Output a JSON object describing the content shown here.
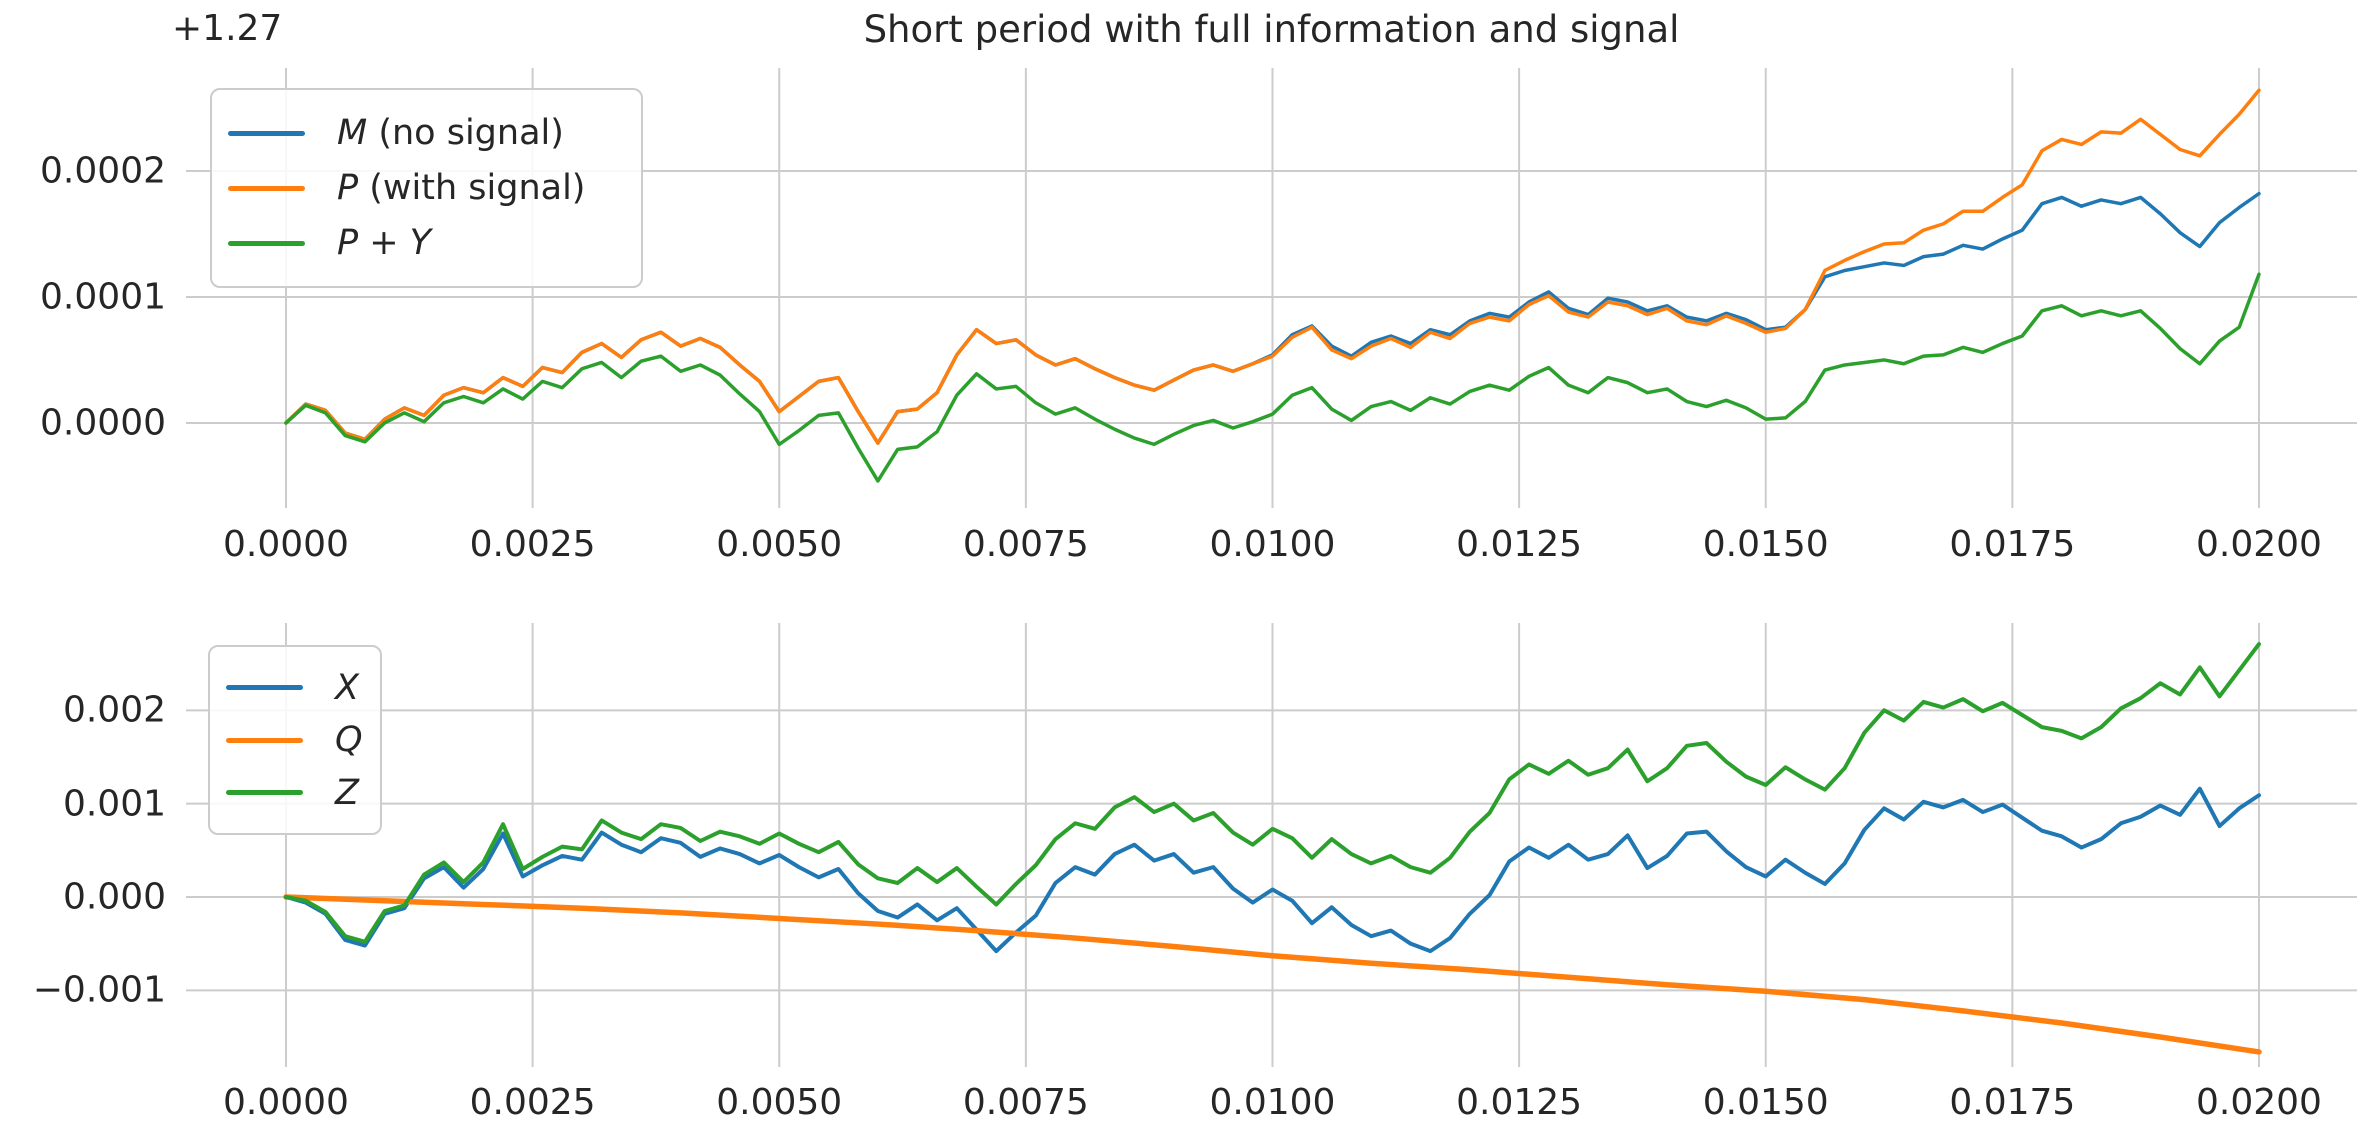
{
  "figure": {
    "title": "Short period with full information and signal",
    "background_color": "#ffffff",
    "text_color": "#262626",
    "grid_color": "#cccccc"
  },
  "chart_data": [
    {
      "id": "top",
      "type": "line",
      "title": "Short period with full information and signal",
      "offset_text": "+1.27",
      "xlabel": "",
      "ylabel": "",
      "grid": true,
      "legend_position": "upper left",
      "xlim": [
        -0.0010136,
        0.0209936
      ],
      "ylim": [
        -6.75e-05,
        0.0002817
      ],
      "x_tick_values": [
        0.0,
        0.0025,
        0.005,
        0.0075,
        0.01,
        0.0125,
        0.015,
        0.0175,
        0.02
      ],
      "x_tick_labels": [
        "0.0000",
        "0.0025",
        "0.0050",
        "0.0075",
        "0.0100",
        "0.0125",
        "0.0150",
        "0.0175",
        "0.0200"
      ],
      "y_tick_values": [
        0.0,
        0.0001,
        0.0002
      ],
      "y_tick_labels": [
        "0.0000",
        "0.0001",
        "0.0002"
      ],
      "legend": [
        {
          "math": "M",
          "text": " (no signal)",
          "color": "#1f77b4"
        },
        {
          "math": "P",
          "text": " (with signal)",
          "color": "#ff7f0e"
        },
        {
          "math": "P + Y",
          "text": "",
          "color": "#2ca02c"
        }
      ],
      "series": [
        {
          "name": "M (no signal)",
          "color": "#1f77b4",
          "width": 3.5,
          "x_start": 0,
          "x_step": 0.0002,
          "value_scale": 1e-05,
          "values": [
            0,
            1.5,
            1.0,
            -0.8,
            -1.3,
            0.3,
            1.2,
            0.6,
            2.2,
            2.8,
            2.4,
            3.6,
            2.9,
            4.4,
            4.0,
            5.6,
            6.3,
            5.2,
            6.6,
            7.2,
            6.1,
            6.7,
            6.0,
            4.6,
            3.3,
            0.9,
            2.1,
            3.3,
            3.6,
            0.9,
            -1.6,
            0.9,
            1.1,
            2.4,
            5.4,
            7.4,
            6.3,
            6.6,
            5.4,
            4.6,
            5.1,
            4.3,
            3.6,
            3.0,
            2.6,
            3.4,
            4.2,
            4.6,
            4.1,
            4.7,
            5.4,
            7.0,
            7.7,
            6.1,
            5.3,
            6.4,
            6.9,
            6.3,
            7.4,
            7.0,
            8.1,
            8.7,
            8.4,
            9.6,
            10.4,
            9.1,
            8.6,
            9.9,
            9.6,
            8.9,
            9.3,
            8.4,
            8.1,
            8.7,
            8.2,
            7.4,
            7.6,
            9.0,
            11.6,
            12.1,
            12.4,
            12.7,
            12.5,
            13.2,
            13.4,
            14.1,
            13.8,
            14.6,
            15.3,
            17.4,
            17.9,
            17.2,
            17.7,
            17.4,
            17.9,
            16.6,
            15.1,
            14.0,
            15.9,
            17.1,
            18.2
          ]
        },
        {
          "name": "P (with signal)",
          "color": "#ff7f0e",
          "width": 3.5,
          "x_start": 0,
          "x_step": 0.0002,
          "value_scale": 1e-05,
          "values": [
            0,
            1.5,
            1.0,
            -0.8,
            -1.3,
            0.3,
            1.2,
            0.6,
            2.2,
            2.8,
            2.4,
            3.6,
            2.9,
            4.4,
            4.0,
            5.6,
            6.3,
            5.2,
            6.6,
            7.2,
            6.1,
            6.7,
            6.0,
            4.6,
            3.3,
            0.9,
            2.1,
            3.3,
            3.6,
            0.9,
            -1.6,
            0.9,
            1.1,
            2.4,
            5.4,
            7.4,
            6.3,
            6.6,
            5.4,
            4.6,
            5.1,
            4.3,
            3.6,
            3.0,
            2.6,
            3.4,
            4.2,
            4.6,
            4.1,
            4.7,
            5.3,
            6.8,
            7.6,
            5.8,
            5.1,
            6.1,
            6.7,
            6.0,
            7.2,
            6.7,
            7.9,
            8.4,
            8.1,
            9.4,
            10.1,
            8.8,
            8.4,
            9.6,
            9.3,
            8.6,
            9.1,
            8.1,
            7.8,
            8.5,
            7.9,
            7.2,
            7.5,
            9.0,
            12.1,
            12.9,
            13.6,
            14.2,
            14.3,
            15.3,
            15.8,
            16.8,
            16.8,
            17.9,
            18.9,
            21.6,
            22.5,
            22.1,
            23.1,
            23.0,
            24.1,
            22.9,
            21.7,
            21.2,
            22.9,
            24.5,
            26.4
          ]
        },
        {
          "name": "P + Y",
          "color": "#2ca02c",
          "width": 3.5,
          "x_start": 0,
          "x_step": 0.0002,
          "value_scale": 1e-05,
          "values": [
            0,
            1.4,
            0.8,
            -1.0,
            -1.5,
            0.0,
            0.8,
            0.1,
            1.6,
            2.1,
            1.6,
            2.7,
            1.9,
            3.3,
            2.8,
            4.3,
            4.8,
            3.6,
            4.9,
            5.3,
            4.1,
            4.6,
            3.8,
            2.3,
            0.9,
            -1.7,
            -0.6,
            0.6,
            0.8,
            -2.0,
            -4.6,
            -2.1,
            -1.9,
            -0.7,
            2.2,
            3.9,
            2.7,
            2.9,
            1.6,
            0.7,
            1.2,
            0.3,
            -0.5,
            -1.2,
            -1.7,
            -0.9,
            -0.2,
            0.2,
            -0.4,
            0.1,
            0.7,
            2.2,
            2.8,
            1.1,
            0.2,
            1.3,
            1.7,
            1.0,
            2.0,
            1.5,
            2.5,
            3.0,
            2.6,
            3.7,
            4.4,
            3.0,
            2.4,
            3.6,
            3.2,
            2.4,
            2.7,
            1.7,
            1.3,
            1.8,
            1.2,
            0.3,
            0.4,
            1.7,
            4.2,
            4.6,
            4.8,
            5.0,
            4.7,
            5.3,
            5.4,
            6.0,
            5.6,
            6.3,
            6.9,
            8.9,
            9.3,
            8.5,
            8.9,
            8.5,
            8.9,
            7.5,
            5.9,
            4.7,
            6.5,
            7.6,
            11.8
          ]
        }
      ]
    },
    {
      "id": "bottom",
      "type": "line",
      "title": "",
      "xlabel": "",
      "ylabel": "",
      "grid": true,
      "legend_position": "upper left",
      "xlim": [
        -0.0010136,
        0.0209936
      ],
      "ylim": [
        -0.0018215,
        0.0029357
      ],
      "x_tick_values": [
        0.0,
        0.0025,
        0.005,
        0.0075,
        0.01,
        0.0125,
        0.015,
        0.0175,
        0.02
      ],
      "x_tick_labels": [
        "0.0000",
        "0.0025",
        "0.0050",
        "0.0075",
        "0.0100",
        "0.0125",
        "0.0150",
        "0.0175",
        "0.0200"
      ],
      "y_tick_values": [
        -0.001,
        0.0,
        0.001,
        0.002
      ],
      "y_tick_labels": [
        "−0.001",
        "0.000",
        "0.001",
        "0.002"
      ],
      "legend": [
        {
          "math": "X",
          "text": "",
          "color": "#1f77b4"
        },
        {
          "math": "Q",
          "text": "",
          "color": "#ff7f0e"
        },
        {
          "math": "Z",
          "text": "",
          "color": "#2ca02c"
        }
      ],
      "series": [
        {
          "name": "X",
          "color": "#1f77b4",
          "width": 4,
          "x_start": 0,
          "x_step": 0.0002,
          "value_scale": 0.0001,
          "values": [
            0,
            -0.6,
            -1.8,
            -4.6,
            -5.2,
            -1.8,
            -1.2,
            2.0,
            3.2,
            1.0,
            3.0,
            6.8,
            2.2,
            3.4,
            4.4,
            4.0,
            6.9,
            5.6,
            4.8,
            6.3,
            5.8,
            4.3,
            5.2,
            4.6,
            3.6,
            4.5,
            3.2,
            2.1,
            3.0,
            0.4,
            -1.5,
            -2.2,
            -0.8,
            -2.5,
            -1.2,
            -3.5,
            -5.8,
            -3.8,
            -2.0,
            1.5,
            3.2,
            2.4,
            4.6,
            5.6,
            3.9,
            4.6,
            2.6,
            3.2,
            0.9,
            -0.6,
            0.8,
            -0.4,
            -2.8,
            -1.1,
            -3.0,
            -4.2,
            -3.6,
            -5.0,
            -5.8,
            -4.4,
            -1.8,
            0.2,
            3.8,
            5.3,
            4.2,
            5.6,
            4.0,
            4.6,
            6.6,
            3.1,
            4.4,
            6.8,
            7.0,
            4.9,
            3.2,
            2.2,
            4.0,
            2.6,
            1.4,
            3.6,
            7.2,
            9.5,
            8.3,
            10.2,
            9.6,
            10.4,
            9.1,
            9.9,
            8.5,
            7.1,
            6.5,
            5.3,
            6.2,
            7.9,
            8.6,
            9.8,
            8.8,
            11.6,
            7.6,
            9.5,
            10.9
          ]
        },
        {
          "name": "Q",
          "color": "#ff7f0e",
          "width": 5.5,
          "x_start": 0,
          "x_step": 0.001,
          "value_scale": 0.0001,
          "values": [
            0,
            -0.4,
            -0.8,
            -1.2,
            -1.7,
            -2.3,
            -2.9,
            -3.6,
            -4.4,
            -5.3,
            -6.3,
            -7.1,
            -7.8,
            -8.6,
            -9.4,
            -10.1,
            -11.0,
            -12.2,
            -13.5,
            -15.0,
            -16.6
          ]
        },
        {
          "name": "Z",
          "color": "#2ca02c",
          "width": 4,
          "x_start": 0,
          "x_step": 0.0002,
          "value_scale": 0.0001,
          "values": [
            0,
            -0.4,
            -1.6,
            -4.2,
            -4.8,
            -1.5,
            -0.9,
            2.4,
            3.7,
            1.6,
            3.7,
            7.8,
            3.0,
            4.3,
            5.4,
            5.1,
            8.2,
            6.9,
            6.2,
            7.8,
            7.4,
            6.0,
            7.0,
            6.5,
            5.7,
            6.8,
            5.7,
            4.8,
            5.9,
            3.5,
            2.0,
            1.5,
            3.1,
            1.6,
            3.1,
            1.1,
            -0.8,
            1.4,
            3.4,
            6.2,
            7.9,
            7.3,
            9.6,
            10.7,
            9.1,
            10.0,
            8.2,
            9.0,
            6.9,
            5.6,
            7.3,
            6.3,
            4.2,
            6.2,
            4.6,
            3.6,
            4.4,
            3.2,
            2.6,
            4.2,
            7.0,
            9.0,
            12.6,
            14.2,
            13.2,
            14.6,
            13.1,
            13.8,
            15.8,
            12.4,
            13.8,
            16.2,
            16.5,
            14.5,
            12.9,
            12.0,
            13.9,
            12.6,
            11.5,
            13.8,
            17.6,
            20.0,
            18.9,
            20.9,
            20.3,
            21.2,
            19.9,
            20.8,
            19.5,
            18.2,
            17.8,
            17.0,
            18.2,
            20.2,
            21.3,
            22.9,
            21.7,
            24.6,
            21.5,
            24.3,
            27.1
          ]
        }
      ]
    }
  ]
}
